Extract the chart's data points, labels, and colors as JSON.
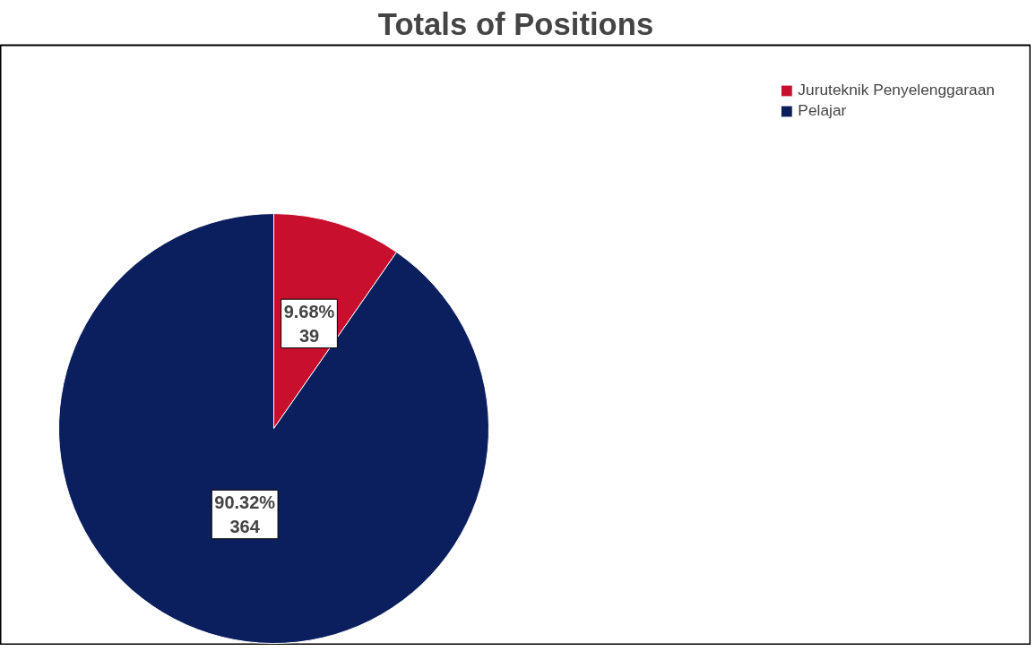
{
  "chart_data": {
    "type": "pie",
    "title": "Totals of Positions",
    "categories": [
      "Juruteknik Penyelenggaraan",
      "Pelajar"
    ],
    "values": [
      39,
      364
    ],
    "colors": [
      "#c8102e",
      "#0b1f5e"
    ],
    "value_labels": [
      "9.68%\n39",
      "90.32%\n364"
    ],
    "legend": "top right"
  }
}
